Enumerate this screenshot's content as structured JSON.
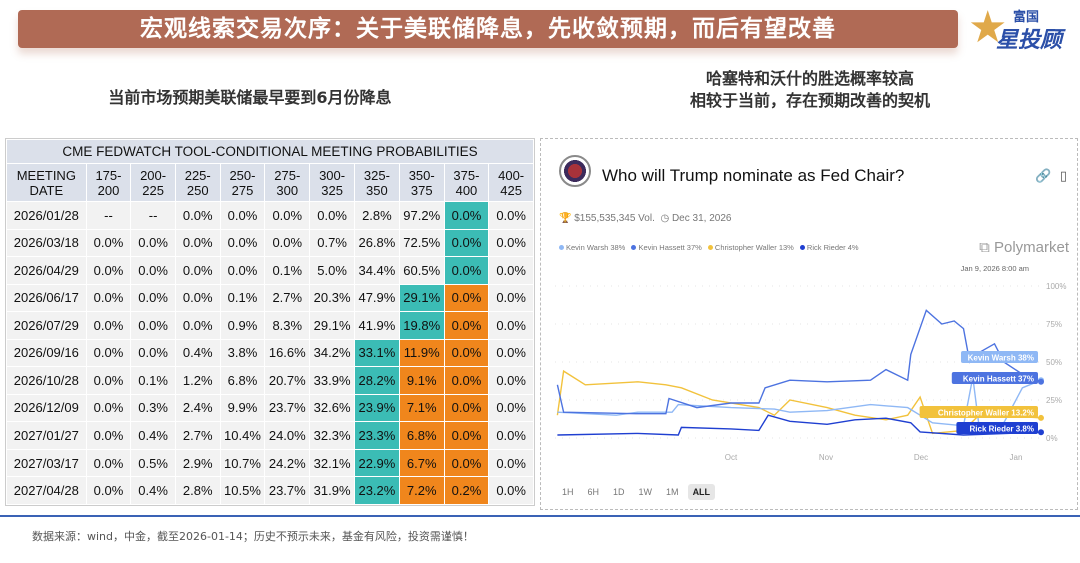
{
  "header": {
    "title": "宏观线索交易次序：关于美联储降息，先收敛预期，而后有望改善",
    "logo_text_top": "富国",
    "logo_text_bottom": "星投顾"
  },
  "left_subtitle": "当前市场预期美联储最早要到6月份降息",
  "right_subtitle": [
    "哈塞特和沃什的胜选概率较高",
    "相较于当前，存在预期改善的契机"
  ],
  "table": {
    "title": "CME FEDWATCH TOOL-CONDITIONAL MEETING PROBABILITIES",
    "columns": [
      "MEETING DATE",
      "175-200",
      "200-225",
      "225-250",
      "250-275",
      "275-300",
      "300-325",
      "325-350",
      "350-375",
      "375-400",
      "400-425"
    ],
    "rows": [
      [
        "2026/01/28",
        "--",
        "--",
        "0.0%",
        "0.0%",
        "0.0%",
        "0.0%",
        "2.8%",
        "97.2%",
        "0.0%",
        "0.0%"
      ],
      [
        "2026/03/18",
        "0.0%",
        "0.0%",
        "0.0%",
        "0.0%",
        "0.0%",
        "0.7%",
        "26.8%",
        "72.5%",
        "0.0%",
        "0.0%"
      ],
      [
        "2026/04/29",
        "0.0%",
        "0.0%",
        "0.0%",
        "0.0%",
        "0.1%",
        "5.0%",
        "34.4%",
        "60.5%",
        "0.0%",
        "0.0%"
      ],
      [
        "2026/06/17",
        "0.0%",
        "0.0%",
        "0.0%",
        "0.1%",
        "2.7%",
        "20.3%",
        "47.9%",
        "29.1%",
        "0.0%",
        "0.0%"
      ],
      [
        "2026/07/29",
        "0.0%",
        "0.0%",
        "0.0%",
        "0.9%",
        "8.3%",
        "29.1%",
        "41.9%",
        "19.8%",
        "0.0%",
        "0.0%"
      ],
      [
        "2026/09/16",
        "0.0%",
        "0.0%",
        "0.4%",
        "3.8%",
        "16.6%",
        "34.2%",
        "33.1%",
        "11.9%",
        "0.0%",
        "0.0%"
      ],
      [
        "2026/10/28",
        "0.0%",
        "0.1%",
        "1.2%",
        "6.8%",
        "20.7%",
        "33.9%",
        "28.2%",
        "9.1%",
        "0.0%",
        "0.0%"
      ],
      [
        "2026/12/09",
        "0.0%",
        "0.3%",
        "2.4%",
        "9.9%",
        "23.7%",
        "32.6%",
        "23.9%",
        "7.1%",
        "0.0%",
        "0.0%"
      ],
      [
        "2027/01/27",
        "0.0%",
        "0.4%",
        "2.7%",
        "10.4%",
        "24.0%",
        "32.3%",
        "23.3%",
        "6.8%",
        "0.0%",
        "0.0%"
      ],
      [
        "2027/03/17",
        "0.0%",
        "0.5%",
        "2.9%",
        "10.7%",
        "24.2%",
        "32.1%",
        "22.9%",
        "6.7%",
        "0.0%",
        "0.0%"
      ],
      [
        "2027/04/28",
        "0.0%",
        "0.4%",
        "2.8%",
        "10.5%",
        "23.7%",
        "31.9%",
        "23.2%",
        "7.2%",
        "0.2%",
        "0.0%"
      ]
    ],
    "highlight": {
      "teal": [
        [
          0,
          8
        ],
        [
          1,
          8
        ],
        [
          2,
          8
        ],
        [
          3,
          7
        ],
        [
          4,
          7
        ],
        [
          5,
          6
        ],
        [
          6,
          6
        ],
        [
          7,
          6
        ],
        [
          8,
          6
        ],
        [
          9,
          6
        ],
        [
          10,
          6
        ]
      ],
      "orange": [
        [
          3,
          8
        ],
        [
          4,
          8
        ],
        [
          5,
          7
        ],
        [
          5,
          8
        ],
        [
          6,
          7
        ],
        [
          6,
          8
        ],
        [
          7,
          7
        ],
        [
          7,
          8
        ],
        [
          8,
          7
        ],
        [
          8,
          8
        ],
        [
          9,
          7
        ],
        [
          9,
          8
        ],
        [
          10,
          7
        ],
        [
          10,
          8
        ]
      ]
    },
    "colors": {
      "teal": "#3bbcb5",
      "orange": "#f0861c",
      "header_bg": "#dbe0ea",
      "cell_bg": "#f2f2f2"
    }
  },
  "market": {
    "question": "Who will Trump nominate as Fed Chair?",
    "volume": "$155,535,345 Vol.",
    "end_date": "Dec 31, 2026",
    "brand": "Polymarket",
    "timestamp": "Jan 9, 2026 8:00 am",
    "legend": [
      "Kevin Warsh 38%",
      "Kevin Hassett 37%",
      "Christopher Waller 13%",
      "Rick Rieder 4%"
    ],
    "time_tabs": [
      "1H",
      "6H",
      "1D",
      "1W",
      "1M",
      "ALL"
    ],
    "active_tab": "ALL"
  },
  "chart_data": {
    "type": "line",
    "x_ticks": [
      "Oct",
      "Nov",
      "Dec",
      "Jan"
    ],
    "y_ticks": [
      "100%",
      "75%",
      "50%",
      "25%",
      "0%"
    ],
    "ylim": [
      0,
      100
    ],
    "grid": true,
    "series": [
      {
        "name": "Kevin Warsh",
        "end_label": "Kevin Warsh 38%",
        "color": "#8fb8f5",
        "points": [
          [
            "2025-08-06",
            17
          ],
          [
            "2025-08-25",
            15
          ],
          [
            "2025-09-01",
            17
          ],
          [
            "2025-09-12",
            17
          ],
          [
            "2025-09-14",
            22
          ],
          [
            "2025-10-01",
            20
          ],
          [
            "2025-10-15",
            19
          ],
          [
            "2025-10-20",
            17
          ],
          [
            "2025-11-01",
            18
          ],
          [
            "2025-11-15",
            22
          ],
          [
            "2025-11-27",
            20
          ],
          [
            "2025-12-01",
            15
          ],
          [
            "2025-12-05",
            10
          ],
          [
            "2025-12-15",
            8
          ],
          [
            "2025-12-18",
            40
          ],
          [
            "2025-12-20",
            8
          ],
          [
            "2025-12-28",
            10
          ],
          [
            "2026-01-03",
            33
          ],
          [
            "2026-01-09",
            38
          ]
        ]
      },
      {
        "name": "Kevin Hassett",
        "end_label": "Kevin Hassett 37%",
        "color": "#4d73e0",
        "points": [
          [
            "2025-08-06",
            35
          ],
          [
            "2025-08-08",
            17
          ],
          [
            "2025-09-01",
            16
          ],
          [
            "2025-09-10",
            16
          ],
          [
            "2025-09-11",
            26
          ],
          [
            "2025-09-20",
            20
          ],
          [
            "2025-10-01",
            23
          ],
          [
            "2025-10-10",
            23
          ],
          [
            "2025-10-12",
            33
          ],
          [
            "2025-10-20",
            38
          ],
          [
            "2025-11-01",
            37
          ],
          [
            "2025-11-15",
            38
          ],
          [
            "2025-11-20",
            45
          ],
          [
            "2025-11-27",
            38
          ],
          [
            "2025-11-28",
            55
          ],
          [
            "2025-12-03",
            84
          ],
          [
            "2025-12-08",
            75
          ],
          [
            "2025-12-12",
            77
          ],
          [
            "2025-12-15",
            72
          ],
          [
            "2025-12-17",
            50
          ],
          [
            "2025-12-19",
            55
          ],
          [
            "2025-12-25",
            62
          ],
          [
            "2025-12-28",
            50
          ],
          [
            "2026-01-03",
            42
          ],
          [
            "2026-01-09",
            37
          ]
        ]
      },
      {
        "name": "Christopher Waller",
        "end_label": "Christopher Waller 13.2%",
        "color": "#f2c23c",
        "points": [
          [
            "2025-08-06",
            15
          ],
          [
            "2025-08-08",
            44
          ],
          [
            "2025-08-15",
            35
          ],
          [
            "2025-09-01",
            37
          ],
          [
            "2025-09-10",
            35
          ],
          [
            "2025-09-15",
            33
          ],
          [
            "2025-09-25",
            25
          ],
          [
            "2025-10-10",
            20
          ],
          [
            "2025-10-15",
            15
          ],
          [
            "2025-10-20",
            25
          ],
          [
            "2025-11-01",
            20
          ],
          [
            "2025-11-10",
            15
          ],
          [
            "2025-11-20",
            12
          ],
          [
            "2025-11-27",
            15
          ],
          [
            "2025-12-01",
            27
          ],
          [
            "2025-12-05",
            3
          ],
          [
            "2025-12-15",
            5
          ],
          [
            "2025-12-20",
            15
          ],
          [
            "2026-01-03",
            14
          ],
          [
            "2026-01-09",
            13.2
          ]
        ]
      },
      {
        "name": "Rick Rieder",
        "end_label": "Rick Rieder 3.8%",
        "color": "#1f3fd1",
        "points": [
          [
            "2025-08-06",
            2
          ],
          [
            "2025-09-01",
            3
          ],
          [
            "2025-09-14",
            2
          ],
          [
            "2025-09-15",
            7
          ],
          [
            "2025-10-01",
            6
          ],
          [
            "2025-10-10",
            5
          ],
          [
            "2025-10-13",
            15
          ],
          [
            "2025-10-20",
            11
          ],
          [
            "2025-11-01",
            9
          ],
          [
            "2025-11-10",
            12
          ],
          [
            "2025-11-20",
            13
          ],
          [
            "2025-11-28",
            10
          ],
          [
            "2025-12-01",
            4
          ],
          [
            "2025-12-15",
            2
          ],
          [
            "2026-01-09",
            3.8
          ]
        ]
      }
    ]
  },
  "footer": "数据来源：wind，中金，截至2026-01-14；历史不预示未来，基金有风险，投资需谨慎！"
}
